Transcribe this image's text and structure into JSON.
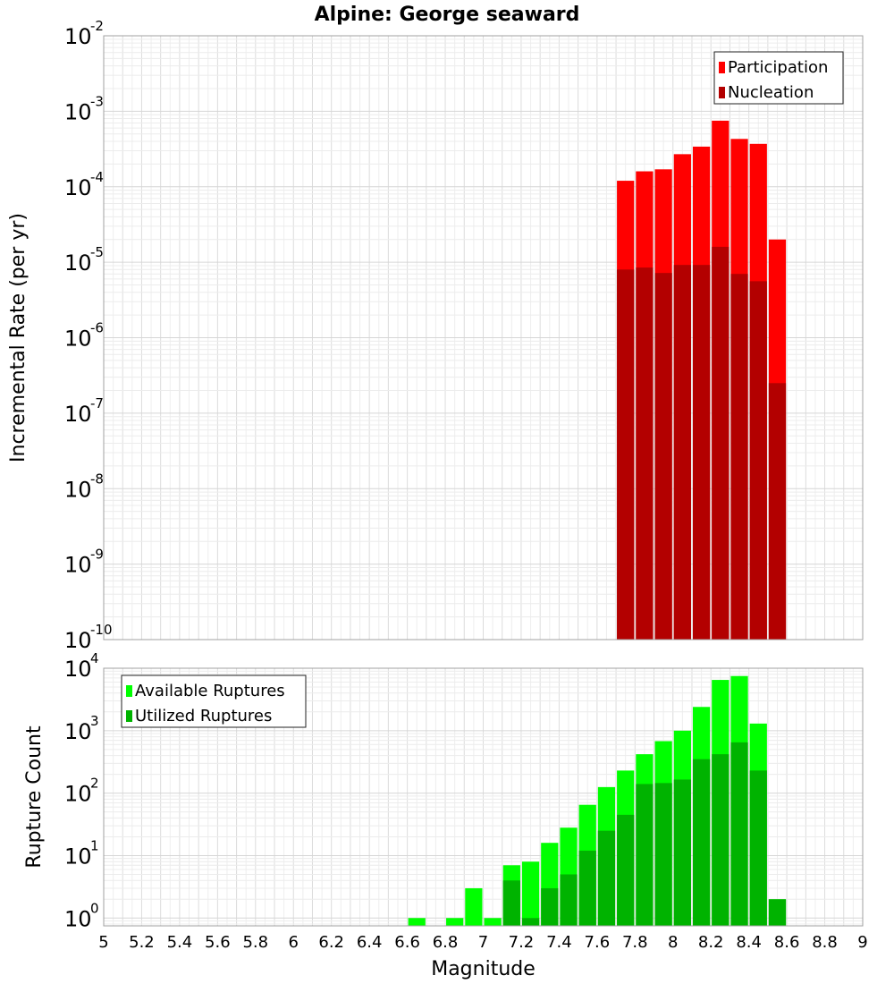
{
  "chart_data": [
    {
      "type": "bar",
      "title": "Alpine: George seaward",
      "xlabel": "Magnitude",
      "ylabel": "Incremental Rate (per yr)",
      "xlim": [
        5,
        9
      ],
      "ylim": [
        1e-10,
        0.01
      ],
      "yscale": "log",
      "grid": true,
      "legend_position": "top-right",
      "bin_width": 0.1,
      "x": [
        7.75,
        7.85,
        7.95,
        8.05,
        8.15,
        8.25,
        8.35,
        8.45,
        8.55
      ],
      "series": [
        {
          "name": "Participation",
          "color": "#ff0000",
          "values": [
            0.00012,
            0.00016,
            0.00017,
            0.00027,
            0.00034,
            0.00075,
            0.00043,
            0.00037,
            2e-05
          ]
        },
        {
          "name": "Nucleation",
          "color": "#b30000",
          "values": [
            8e-06,
            8.5e-06,
            7.2e-06,
            9.2e-06,
            9.2e-06,
            1.6e-05,
            7e-06,
            5.6e-06,
            2.5e-07
          ]
        }
      ]
    },
    {
      "type": "bar",
      "xlabel": "Magnitude",
      "ylabel": "Rupture Count",
      "xlim": [
        5,
        9
      ],
      "ylim": [
        0.75,
        10000
      ],
      "yscale": "log",
      "grid": true,
      "legend_position": "top-left",
      "bin_width": 0.1,
      "x": [
        6.65,
        6.75,
        6.85,
        6.95,
        7.05,
        7.15,
        7.25,
        7.35,
        7.45,
        7.55,
        7.65,
        7.75,
        7.85,
        7.95,
        8.05,
        8.15,
        8.25,
        8.35,
        8.45,
        8.55
      ],
      "series": [
        {
          "name": "Available Ruptures",
          "color": "#00ff00",
          "values": [
            1,
            0,
            1,
            3,
            1,
            7,
            8,
            16,
            28,
            65,
            125,
            230,
            420,
            680,
            1000,
            2400,
            6500,
            7500,
            1300,
            2
          ]
        },
        {
          "name": "Utilized Ruptures",
          "color": "#00b300",
          "values": [
            0,
            0,
            0,
            0,
            0,
            4,
            1,
            3,
            5,
            12,
            25,
            45,
            140,
            145,
            165,
            350,
            420,
            650,
            230,
            2
          ]
        }
      ]
    }
  ],
  "x_ticks": [
    "5",
    "5.2",
    "5.4",
    "5.6",
    "5.8",
    "6",
    "6.2",
    "6.4",
    "6.6",
    "6.8",
    "7",
    "7.2",
    "7.4",
    "7.6",
    "7.8",
    "8",
    "8.2",
    "8.4",
    "8.6",
    "8.8",
    "9"
  ],
  "top_y_ticks": [
    {
      "base": "10",
      "exp": "-2"
    },
    {
      "base": "10",
      "exp": "-3"
    },
    {
      "base": "10",
      "exp": "-4"
    },
    {
      "base": "10",
      "exp": "-5"
    },
    {
      "base": "10",
      "exp": "-6"
    },
    {
      "base": "10",
      "exp": "-7"
    },
    {
      "base": "10",
      "exp": "-8"
    },
    {
      "base": "10",
      "exp": "-9"
    },
    {
      "base": "10",
      "exp": "-10"
    }
  ],
  "bottom_y_ticks": [
    {
      "base": "10",
      "exp": "4"
    },
    {
      "base": "10",
      "exp": "3"
    },
    {
      "base": "10",
      "exp": "2"
    },
    {
      "base": "10",
      "exp": "1"
    },
    {
      "base": "10",
      "exp": "0"
    }
  ]
}
